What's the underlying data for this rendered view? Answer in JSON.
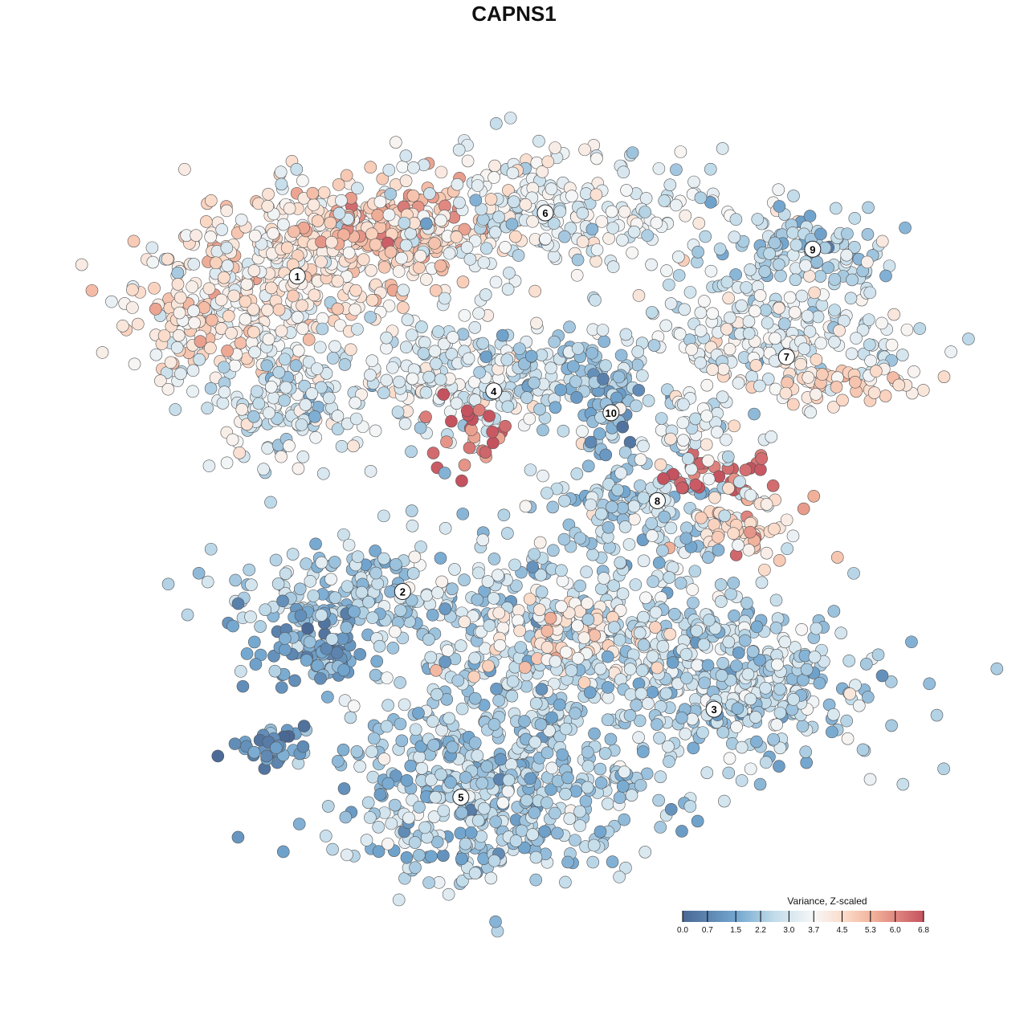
{
  "chart_data": {
    "type": "scatter",
    "title": "CAPNS1",
    "xlabel": "",
    "ylabel": "",
    "xlim": [
      -50,
      50
    ],
    "ylim": [
      -50,
      50
    ],
    "grid": false,
    "note": "t-SNE embedding; points generated per cluster (center, spread, count, mean value)",
    "color_scale": {
      "title": "Variance, Z-scaled",
      "ticks": [
        "0.0",
        "0.7",
        "1.5",
        "2.2",
        "3.0",
        "3.7",
        "4.5",
        "5.3",
        "6.0",
        "6.8"
      ],
      "range": [
        0,
        6.8
      ],
      "stops": [
        [
          0,
          "#4a6894"
        ],
        [
          1.5,
          "#72a6cf"
        ],
        [
          2.6,
          "#c2dcea"
        ],
        [
          3.7,
          "#f7f7f7"
        ],
        [
          4.6,
          "#fbd9c6"
        ],
        [
          5.4,
          "#f1b099"
        ],
        [
          6.0,
          "#e08880"
        ],
        [
          6.8,
          "#c5525f"
        ]
      ],
      "placement": "bottom-right"
    },
    "clusters": [
      {
        "center": [
          -26.3,
          37.2
        ],
        "spread": [
          9.7,
          4.4
        ],
        "n": 300,
        "mean": 4.3
      },
      {
        "center": [
          -39.2,
          28.4
        ],
        "spread": [
          7.5,
          5.5
        ],
        "n": 250,
        "mean": 3.8
      },
      {
        "center": [
          -32.8,
          15.1
        ],
        "spread": [
          5.4,
          4.4
        ],
        "n": 160,
        "mean": 3.0
      },
      {
        "center": [
          -46.8,
          25.1
        ],
        "spread": [
          2.2,
          2.8
        ],
        "n": 40,
        "mean": 4.5
      },
      {
        "center": [
          -18.8,
          38.3
        ],
        "spread": [
          5.4,
          3.3
        ],
        "n": 120,
        "mean": 5.0
      },
      {
        "center": [
          1.6,
          41.1
        ],
        "spread": [
          11.8,
          4.4
        ],
        "n": 260,
        "mean": 3.3
      },
      {
        "center": [
          36,
          36.1
        ],
        "spread": [
          6.5,
          3.3
        ],
        "n": 120,
        "mean": 2.5
      },
      {
        "center": [
          31.7,
          24
        ],
        "spread": [
          9.7,
          3.3
        ],
        "n": 200,
        "mean": 3.2
      },
      {
        "center": [
          41.4,
          17.3
        ],
        "spread": [
          5.4,
          1.7
        ],
        "n": 60,
        "mean": 4.4
      },
      {
        "center": [
          -9.1,
          18.5
        ],
        "spread": [
          6.5,
          4.4
        ],
        "n": 200,
        "mean": 3.2
      },
      {
        "center": [
          -8.6,
          10.7
        ],
        "spread": [
          3.2,
          2.2
        ],
        "n": 25,
        "mean": 6.4
      },
      {
        "center": [
          5.9,
          19.6
        ],
        "spread": [
          5.4,
          2.8
        ],
        "n": 80,
        "mean": 2.2
      },
      {
        "center": [
          10.2,
          14
        ],
        "spread": [
          2.2,
          3.3
        ],
        "n": 50,
        "mean": 1.8
      },
      {
        "center": [
          14.5,
          0.8
        ],
        "spread": [
          6.5,
          2.8
        ],
        "n": 90,
        "mean": 2.4
      },
      {
        "center": [
          25.3,
          5.2
        ],
        "spread": [
          3.8,
          1.3
        ],
        "n": 30,
        "mean": 6.3
      },
      {
        "center": [
          28.5,
          -2.5
        ],
        "spread": [
          3.8,
          2.2
        ],
        "n": 60,
        "mean": 4.7
      },
      {
        "center": [
          22,
          11.8
        ],
        "spread": [
          4.3,
          3.3
        ],
        "n": 60,
        "mean": 3.3
      },
      {
        "center": [
          -26.3,
          -11.4
        ],
        "spread": [
          7.5,
          3.9
        ],
        "n": 150,
        "mean": 2.3
      },
      {
        "center": [
          -30.6,
          -19.1
        ],
        "spread": [
          4.3,
          2.8
        ],
        "n": 80,
        "mean": 1.3
      },
      {
        "center": [
          2.7,
          -16.9
        ],
        "spread": [
          12.9,
          8.8
        ],
        "n": 500,
        "mean": 2.6
      },
      {
        "center": [
          4.8,
          -16.9
        ],
        "spread": [
          5.4,
          3.3
        ],
        "n": 80,
        "mean": 4.4
      },
      {
        "center": [
          27.4,
          -23.5
        ],
        "spread": [
          9.7,
          5.5
        ],
        "n": 350,
        "mean": 2.5
      },
      {
        "center": [
          -5.9,
          -39
        ],
        "spread": [
          10.8,
          6.1
        ],
        "n": 450,
        "mean": 2.3
      },
      {
        "center": [
          -35,
          -31.8
        ],
        "spread": [
          3.2,
          1.3
        ],
        "n": 40,
        "mean": 1.0
      }
    ],
    "cluster_labels": [
      {
        "label": "1",
        "pos": [
          -31.7,
          32.4
        ]
      },
      {
        "label": "2",
        "pos": [
          -17.6,
          -11
        ]
      },
      {
        "label": "3",
        "pos": [
          24.1,
          -27.2
        ]
      },
      {
        "label": "4",
        "pos": [
          -5.4,
          16.6
        ]
      },
      {
        "label": "5",
        "pos": [
          -9.8,
          -39.3
        ]
      },
      {
        "label": "6",
        "pos": [
          1.5,
          41.1
        ]
      },
      {
        "label": "7",
        "pos": [
          33.8,
          21.3
        ]
      },
      {
        "label": "8",
        "pos": [
          16.5,
          1.5
        ]
      },
      {
        "label": "9",
        "pos": [
          37.3,
          36.1
        ]
      },
      {
        "label": "10",
        "pos": [
          10.3,
          13.6
        ]
      }
    ]
  }
}
